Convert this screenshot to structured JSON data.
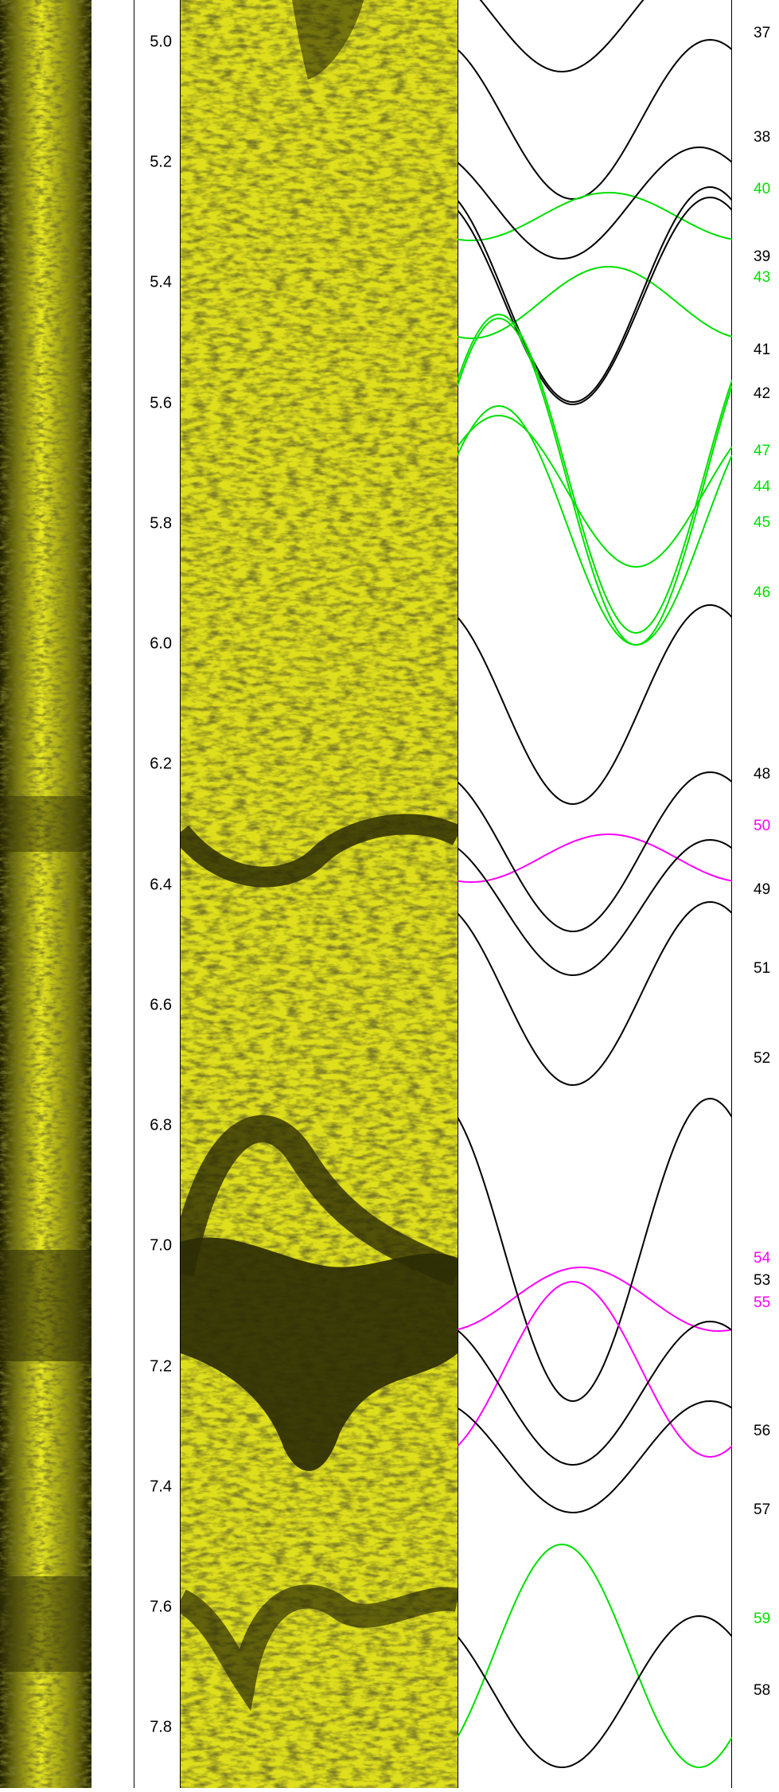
{
  "depth_axis": {
    "unit": "",
    "labels": [
      "5.0",
      "5.2",
      "5.4",
      "5.6",
      "5.8",
      "6.0",
      "6.2",
      "6.4",
      "6.6",
      "6.8",
      "7.0",
      "7.2",
      "7.4",
      "7.6",
      "7.8"
    ],
    "top_depth": 4.93,
    "bottom_depth": 7.9,
    "major_step": 0.2
  },
  "colors": {
    "core_yellow": "#e6e61a",
    "core_dark": "#2d2d05",
    "structural": "#000000",
    "green_set": "#00e000",
    "magenta_set": "#ff00ff"
  },
  "features": [
    {
      "id": "37",
      "color": "#000000"
    },
    {
      "id": "38",
      "color": "#000000"
    },
    {
      "id": "40",
      "color": "#00e000"
    },
    {
      "id": "39",
      "color": "#000000"
    },
    {
      "id": "43",
      "color": "#00e000"
    },
    {
      "id": "41",
      "color": "#000000"
    },
    {
      "id": "42",
      "color": "#000000"
    },
    {
      "id": "47",
      "color": "#00e000"
    },
    {
      "id": "44",
      "color": "#00e000"
    },
    {
      "id": "45",
      "color": "#00e000"
    },
    {
      "id": "46",
      "color": "#00e000"
    },
    {
      "id": "48",
      "color": "#000000"
    },
    {
      "id": "50",
      "color": "#ff00ff"
    },
    {
      "id": "49",
      "color": "#000000"
    },
    {
      "id": "51",
      "color": "#000000"
    },
    {
      "id": "52",
      "color": "#000000"
    },
    {
      "id": "54",
      "color": "#ff00ff"
    },
    {
      "id": "53",
      "color": "#000000"
    },
    {
      "id": "55",
      "color": "#ff00ff"
    },
    {
      "id": "56",
      "color": "#000000"
    },
    {
      "id": "57",
      "color": "#000000"
    },
    {
      "id": "59",
      "color": "#00e000"
    },
    {
      "id": "58",
      "color": "#000000"
    }
  ]
}
